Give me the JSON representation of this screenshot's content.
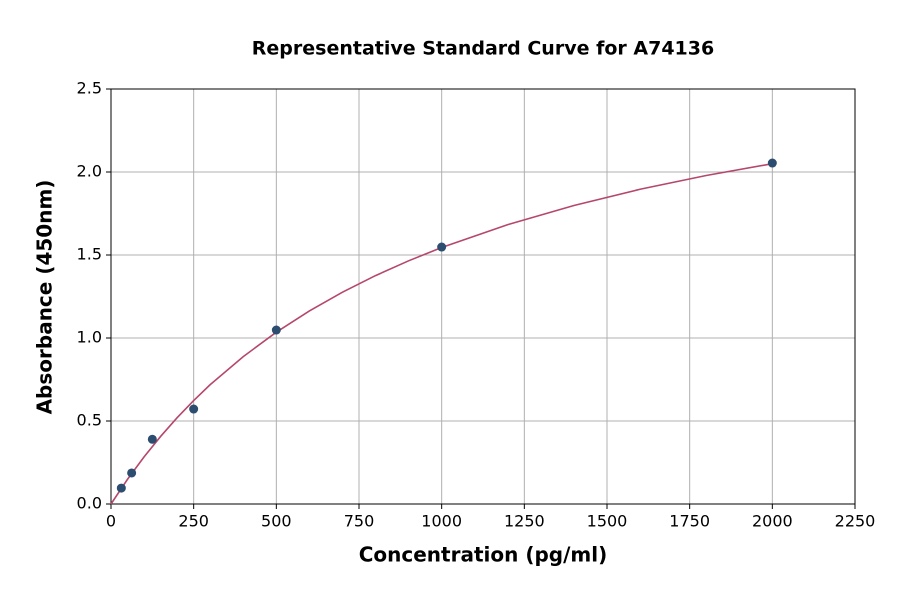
{
  "chart_data": {
    "type": "scatter",
    "title": "Representative Standard Curve for A74136",
    "x_label": "Concentration (pg/ml)",
    "y_label": "Absorbance (450nm)",
    "xlim": [
      0,
      2250
    ],
    "xticks": [
      0,
      250,
      500,
      750,
      1000,
      1250,
      1500,
      1750,
      2000,
      2250
    ],
    "ylim": [
      0,
      2.5
    ],
    "yticks": [
      {
        "value": 0,
        "label": "0.0"
      },
      0.5,
      {
        "value": 1,
        "label": "1.0"
      },
      1.5,
      {
        "value": 2,
        "label": "2.0"
      },
      2.5
    ],
    "grid": true,
    "series": [
      {
        "mode": "markers",
        "color": "#2c4d6f",
        "x": [
          31.25,
          62.5,
          125,
          250,
          500,
          1000,
          2000
        ],
        "values": [
          0.096,
          0.187,
          0.39,
          0.572,
          1.048,
          1.548,
          2.054
        ]
      },
      {
        "mode": "line",
        "color": "#b5476b",
        "x": [
          0,
          50,
          100,
          150,
          200,
          250,
          300,
          400,
          500,
          600,
          700,
          800,
          900,
          1000,
          1200,
          1400,
          1600,
          1800,
          2000
        ],
        "values": [
          0,
          0.149,
          0.284,
          0.407,
          0.52,
          0.623,
          0.719,
          0.888,
          1.035,
          1.163,
          1.276,
          1.376,
          1.465,
          1.545,
          1.683,
          1.798,
          1.896,
          1.979,
          2.05
        ]
      }
    ]
  }
}
